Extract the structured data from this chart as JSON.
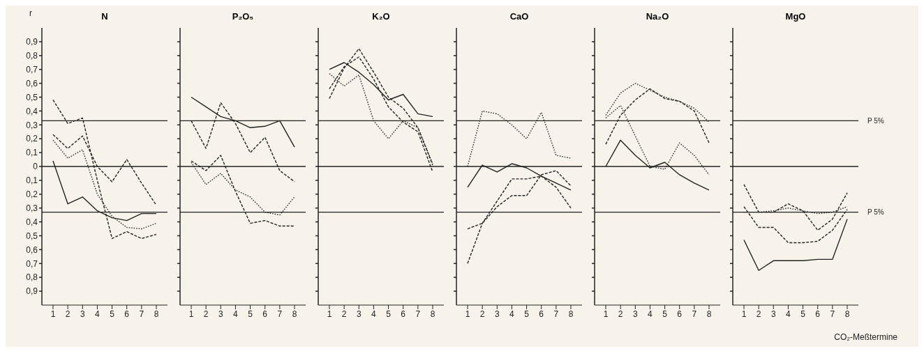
{
  "chart_data": [
    {
      "type": "line",
      "title": "N",
      "ylabel": "r",
      "categories": [
        "1",
        "2",
        "3",
        "4",
        "5",
        "6",
        "7",
        "8"
      ],
      "ylim": [
        -1,
        1
      ],
      "yticks": [
        {
          "value": -0.9,
          "label": "0,9"
        },
        {
          "value": -0.8,
          "label": "0,8"
        },
        {
          "value": -0.7,
          "label": "0,7"
        },
        {
          "value": -0.6,
          "label": "0,6"
        },
        {
          "value": -0.5,
          "label": "0,5"
        },
        {
          "value": -0.4,
          "label": "0,4"
        },
        {
          "value": -0.3,
          "label": "0,3"
        },
        {
          "value": -0.2,
          "label": "0,2"
        },
        {
          "value": -0.1,
          "label": "0,1"
        },
        0,
        {
          "value": 0.1,
          "label": "0,1"
        },
        {
          "value": 0.2,
          "label": "0,2"
        },
        {
          "value": 0.3,
          "label": "0,3"
        },
        {
          "value": 0.4,
          "label": "0,4"
        },
        {
          "value": 0.5,
          "label": "0,5"
        },
        {
          "value": 0.6,
          "label": "0,6"
        },
        {
          "value": 0.7,
          "label": "0,7"
        },
        {
          "value": 0.8,
          "label": "0,8"
        },
        {
          "value": 0.9,
          "label": "0,9"
        }
      ],
      "ref_lines": [
        {
          "axis": "y",
          "value": 0.33,
          "label": null
        },
        {
          "axis": "y",
          "value": 0,
          "label": null
        },
        {
          "axis": "y",
          "value": -0.33,
          "label": null
        }
      ],
      "series": [
        {
          "color": "#222222",
          "line_style": "solid",
          "values": [
            0.04,
            -0.27,
            -0.22,
            -0.32,
            -0.37,
            -0.39,
            -0.34,
            -0.34
          ]
        },
        {
          "color": "#222222",
          "line_style": "dashed",
          "values": [
            0.48,
            0.31,
            0.35,
            -0.1,
            -0.52,
            -0.47,
            -0.52,
            -0.49
          ]
        },
        {
          "color": "#222222",
          "line_style": "dashed",
          "values": [
            0.23,
            0.13,
            0.22,
            0.0,
            -0.11,
            0.05,
            -0.12,
            -0.28
          ]
        },
        {
          "color": "#222222",
          "line_style": "dotted",
          "values": [
            0.19,
            0.06,
            0.12,
            -0.2,
            -0.36,
            -0.44,
            -0.45,
            -0.41
          ]
        }
      ]
    },
    {
      "type": "line",
      "title": "P₂O₅",
      "tick_labels": "x",
      "categories": [
        "1",
        "2",
        "3",
        "4",
        "5",
        "6",
        "7",
        "8"
      ],
      "ylim": [
        -1,
        1
      ],
      "yticks": [
        -0.9,
        -0.8,
        -0.7,
        -0.6,
        -0.5,
        -0.4,
        -0.3,
        -0.2,
        -0.1,
        0,
        0.1,
        0.2,
        0.3,
        0.4,
        0.5,
        0.6,
        0.7,
        0.8,
        0.9
      ],
      "ref_lines": [
        {
          "axis": "y",
          "value": 0.33,
          "label": null
        },
        {
          "axis": "y",
          "value": 0,
          "label": null
        },
        {
          "axis": "y",
          "value": -0.33,
          "label": null
        }
      ],
      "series": [
        {
          "color": "#222222",
          "line_style": "solid",
          "values": [
            0.5,
            0.43,
            0.36,
            0.33,
            0.28,
            0.29,
            0.33,
            0.14
          ]
        },
        {
          "color": "#222222",
          "line_style": "dashed",
          "values": [
            0.33,
            0.13,
            0.46,
            0.31,
            0.1,
            0.21,
            -0.03,
            -0.11
          ]
        },
        {
          "color": "#222222",
          "line_style": "dashed",
          "values": [
            0.04,
            -0.03,
            0.08,
            -0.18,
            -0.41,
            -0.39,
            -0.43,
            -0.43
          ]
        },
        {
          "color": "#222222",
          "line_style": "dotted",
          "values": [
            0.03,
            -0.13,
            -0.05,
            -0.17,
            -0.22,
            -0.33,
            -0.35,
            -0.22
          ]
        }
      ]
    },
    {
      "type": "line",
      "title": "K₂O",
      "tick_labels": "x",
      "categories": [
        "1",
        "2",
        "3",
        "4",
        "5",
        "6",
        "7",
        "8"
      ],
      "ylim": [
        -1,
        1
      ],
      "yticks": [
        -0.9,
        -0.8,
        -0.7,
        -0.6,
        -0.5,
        -0.4,
        -0.3,
        -0.2,
        -0.1,
        0,
        0.1,
        0.2,
        0.3,
        0.4,
        0.5,
        0.6,
        0.7,
        0.8,
        0.9
      ],
      "ref_lines": [
        {
          "axis": "y",
          "value": 0.33,
          "label": null
        },
        {
          "axis": "y",
          "value": 0,
          "label": null
        },
        {
          "axis": "y",
          "value": -0.33,
          "label": null
        }
      ],
      "series": [
        {
          "color": "#222222",
          "line_style": "solid",
          "values": [
            0.7,
            0.75,
            0.68,
            0.59,
            0.48,
            0.52,
            0.38,
            0.36
          ]
        },
        {
          "color": "#222222",
          "line_style": "dashed",
          "values": [
            0.49,
            0.71,
            0.85,
            0.68,
            0.5,
            0.42,
            0.28,
            0.01
          ]
        },
        {
          "color": "#222222",
          "line_style": "dashed",
          "values": [
            0.56,
            0.72,
            0.79,
            0.63,
            0.43,
            0.32,
            0.25,
            -0.04
          ]
        },
        {
          "color": "#222222",
          "line_style": "dotted",
          "values": [
            0.67,
            0.58,
            0.66,
            0.33,
            0.2,
            0.33,
            0.28,
            0.02
          ]
        }
      ]
    },
    {
      "type": "line",
      "title": "CaO",
      "tick_labels": "x",
      "categories": [
        "1",
        "2",
        "3",
        "4",
        "5",
        "6",
        "7",
        "8"
      ],
      "ylim": [
        -1,
        1
      ],
      "yticks": [
        -0.9,
        -0.8,
        -0.7,
        -0.6,
        -0.5,
        -0.4,
        -0.3,
        -0.2,
        -0.1,
        0,
        0.1,
        0.2,
        0.3,
        0.4,
        0.5,
        0.6,
        0.7,
        0.8,
        0.9
      ],
      "ref_lines": [
        {
          "axis": "y",
          "value": 0.33,
          "label": null
        },
        {
          "axis": "y",
          "value": 0,
          "label": null
        },
        {
          "axis": "y",
          "value": -0.33,
          "label": null
        }
      ],
      "series": [
        {
          "color": "#222222",
          "line_style": "solid",
          "values": [
            -0.15,
            0.01,
            -0.04,
            0.02,
            -0.01,
            -0.07,
            -0.12,
            -0.17
          ]
        },
        {
          "color": "#222222",
          "line_style": "dashed",
          "values": [
            -0.45,
            -0.41,
            -0.29,
            -0.21,
            -0.21,
            -0.06,
            -0.03,
            -0.14
          ]
        },
        {
          "color": "#222222",
          "line_style": "dashed",
          "values": [
            -0.7,
            -0.41,
            -0.25,
            -0.09,
            -0.09,
            -0.07,
            -0.15,
            -0.3
          ]
        },
        {
          "color": "#222222",
          "line_style": "dotted",
          "values": [
            0.0,
            0.4,
            0.38,
            0.3,
            0.2,
            0.39,
            0.08,
            0.06
          ]
        }
      ]
    },
    {
      "type": "line",
      "title": "Na₂O",
      "tick_labels": "x",
      "categories": [
        "1",
        "2",
        "3",
        "4",
        "5",
        "6",
        "7",
        "8"
      ],
      "ylim": [
        -1,
        1
      ],
      "yticks": [
        -0.9,
        -0.8,
        -0.7,
        -0.6,
        -0.5,
        -0.4,
        -0.3,
        -0.2,
        -0.1,
        0,
        0.1,
        0.2,
        0.3,
        0.4,
        0.5,
        0.6,
        0.7,
        0.8,
        0.9
      ],
      "ref_lines": [
        {
          "axis": "y",
          "value": 0.33,
          "label": null
        },
        {
          "axis": "y",
          "value": 0,
          "label": null
        },
        {
          "axis": "y",
          "value": -0.33,
          "label": null
        }
      ],
      "series": [
        {
          "color": "#222222",
          "line_style": "solid",
          "values": [
            0.0,
            0.19,
            0.08,
            -0.01,
            0.03,
            -0.06,
            -0.12,
            -0.17
          ]
        },
        {
          "color": "#222222",
          "line_style": "dashed",
          "values": [
            0.16,
            0.37,
            0.48,
            0.56,
            0.49,
            0.47,
            0.4,
            0.17
          ]
        },
        {
          "color": "#222222",
          "line_style": "dotted",
          "values": [
            0.37,
            0.53,
            0.6,
            0.55,
            0.5,
            0.47,
            0.42,
            0.32
          ]
        },
        {
          "color": "#222222",
          "line_style": "dotted",
          "values": [
            0.35,
            0.44,
            0.22,
            0.0,
            -0.02,
            0.17,
            0.08,
            -0.06
          ]
        }
      ]
    },
    {
      "type": "line",
      "title": "MgO",
      "xlabel": "CO₂-Meßtermine",
      "tick_labels": "x",
      "categories": [
        "1",
        "2",
        "3",
        "4",
        "5",
        "6",
        "7",
        "8"
      ],
      "ylim": [
        -1,
        1
      ],
      "yticks": [
        -0.9,
        -0.8,
        -0.7,
        -0.6,
        -0.5,
        -0.4,
        -0.3,
        -0.2,
        -0.1,
        0,
        0.1,
        0.2,
        0.3,
        0.4,
        0.5,
        0.6,
        0.7,
        0.8,
        0.9
      ],
      "ref_lines": [
        {
          "axis": "y",
          "value": 0.33,
          "label": "P 5%"
        },
        {
          "axis": "y",
          "value": 0,
          "label": null
        },
        {
          "axis": "y",
          "value": -0.33,
          "label": "P 5%"
        }
      ],
      "series": [
        {
          "color": "#222222",
          "line_style": "solid",
          "values": [
            -0.53,
            -0.75,
            -0.68,
            -0.68,
            -0.68,
            -0.67,
            -0.67,
            -0.38
          ]
        },
        {
          "color": "#222222",
          "line_style": "dashed",
          "values": [
            -0.13,
            -0.33,
            -0.33,
            -0.27,
            -0.32,
            -0.46,
            -0.38,
            -0.19
          ]
        },
        {
          "color": "#222222",
          "line_style": "dashed",
          "values": [
            -0.29,
            -0.44,
            -0.44,
            -0.55,
            -0.55,
            -0.54,
            -0.46,
            -0.31
          ]
        },
        {
          "color": "#222222",
          "line_style": "dotted",
          "values": [
            -0.33,
            -0.33,
            -0.32,
            -0.3,
            -0.32,
            -0.34,
            -0.33,
            -0.29
          ]
        }
      ]
    }
  ]
}
